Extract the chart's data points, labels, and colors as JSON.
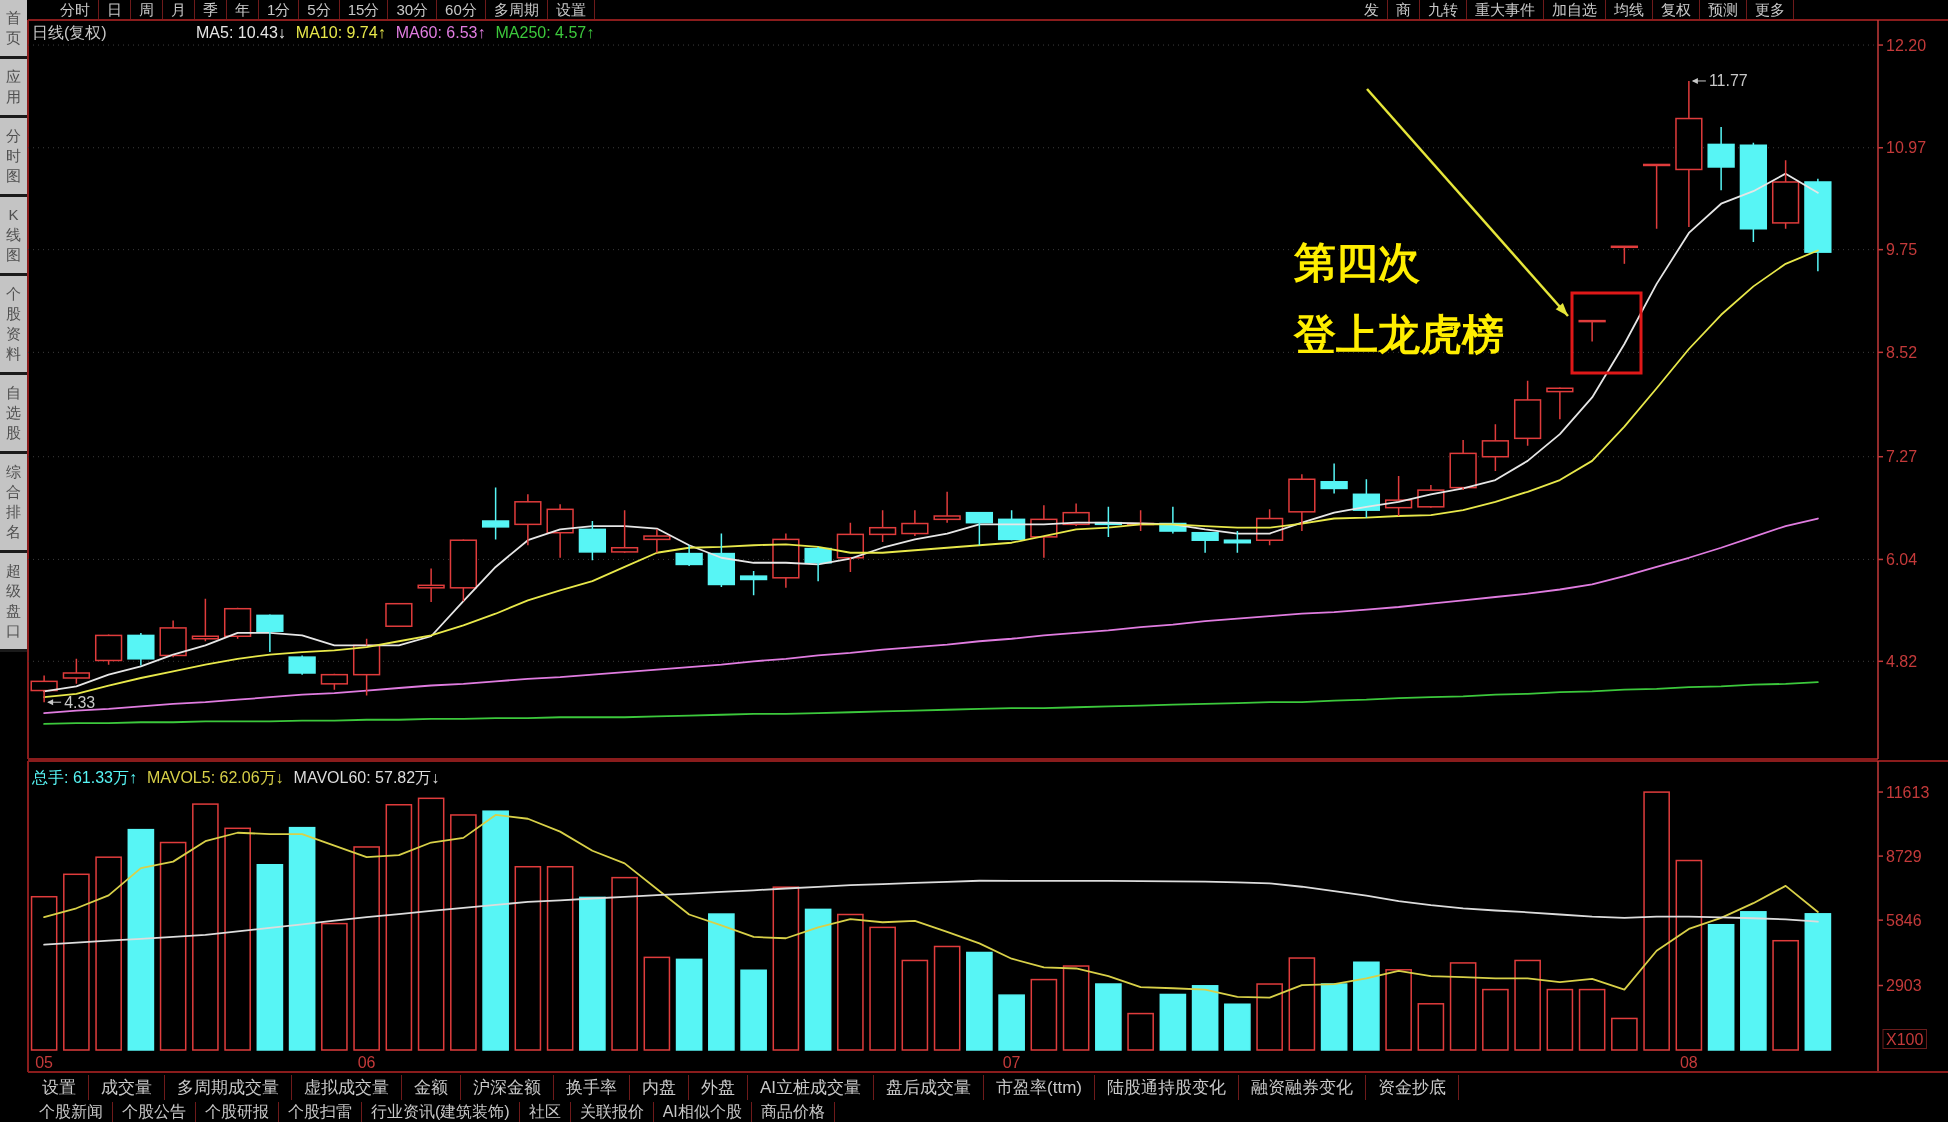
{
  "chart_data": [
    {
      "type": "candlestick",
      "title": "日线(复权)",
      "categories": [
        "05",
        null,
        null,
        null,
        null,
        null,
        null,
        null,
        null,
        null,
        "06",
        null,
        null,
        null,
        null,
        null,
        null,
        null,
        null,
        null,
        null,
        null,
        null,
        null,
        null,
        null,
        null,
        null,
        null,
        null,
        "07",
        null,
        null,
        null,
        null,
        null,
        null,
        null,
        null,
        null,
        null,
        null,
        null,
        null,
        null,
        null,
        null,
        null,
        null,
        null,
        null,
        "08",
        null,
        null,
        null,
        null
      ],
      "ohlc": [
        [
          4.47,
          4.65,
          4.33,
          4.58
        ],
        [
          4.62,
          4.85,
          4.55,
          4.68
        ],
        [
          4.83,
          5.14,
          4.78,
          5.13
        ],
        [
          5.13,
          5.16,
          4.77,
          4.85
        ],
        [
          4.89,
          5.31,
          4.87,
          5.22
        ],
        [
          5.09,
          5.57,
          5.06,
          5.12
        ],
        [
          5.12,
          5.46,
          5.09,
          5.45
        ],
        [
          5.37,
          5.38,
          4.93,
          5.18
        ],
        [
          4.87,
          4.89,
          4.66,
          4.68
        ],
        [
          4.55,
          4.67,
          4.48,
          4.66
        ],
        [
          4.66,
          5.09,
          4.41,
          5.01
        ],
        [
          5.24,
          5.51,
          5.24,
          5.51
        ],
        [
          5.7,
          5.93,
          5.53,
          5.73
        ],
        [
          5.7,
          6.28,
          5.54,
          6.27
        ],
        [
          6.5,
          6.9,
          6.28,
          6.43
        ],
        [
          6.46,
          6.82,
          6.21,
          6.73
        ],
        [
          6.36,
          6.7,
          6.06,
          6.64
        ],
        [
          6.4,
          6.5,
          6.03,
          6.13
        ],
        [
          6.13,
          6.63,
          6.12,
          6.18
        ],
        [
          6.28,
          6.4,
          6.12,
          6.32
        ],
        [
          6.11,
          6.21,
          5.96,
          5.98
        ],
        [
          6.11,
          6.35,
          5.71,
          5.74
        ],
        [
          5.84,
          5.9,
          5.61,
          5.8
        ],
        [
          5.82,
          6.35,
          5.7,
          6.28
        ],
        [
          6.17,
          6.19,
          5.78,
          6.0
        ],
        [
          6.06,
          6.48,
          5.89,
          6.34
        ],
        [
          6.34,
          6.63,
          6.25,
          6.42
        ],
        [
          6.35,
          6.63,
          6.32,
          6.47
        ],
        [
          6.52,
          6.85,
          6.48,
          6.56
        ],
        [
          6.6,
          6.6,
          6.21,
          6.48
        ],
        [
          6.52,
          6.63,
          6.27,
          6.28
        ],
        [
          6.31,
          6.69,
          6.06,
          6.52
        ],
        [
          6.46,
          6.71,
          6.44,
          6.6
        ],
        [
          6.48,
          6.67,
          6.31,
          6.46
        ],
        [
          6.46,
          6.63,
          6.38,
          6.47
        ],
        [
          6.47,
          6.67,
          6.35,
          6.38
        ],
        [
          6.36,
          6.36,
          6.12,
          6.27
        ],
        [
          6.27,
          6.38,
          6.12,
          6.24
        ],
        [
          6.27,
          6.64,
          6.21,
          6.53
        ],
        [
          6.61,
          7.06,
          6.38,
          7.0
        ],
        [
          6.97,
          7.19,
          6.83,
          6.89
        ],
        [
          6.82,
          7.0,
          6.54,
          6.63
        ],
        [
          6.66,
          7.04,
          6.56,
          6.75
        ],
        [
          6.67,
          6.93,
          6.66,
          6.87
        ],
        [
          6.9,
          7.47,
          6.87,
          7.31
        ],
        [
          7.27,
          7.66,
          7.1,
          7.46
        ],
        [
          7.49,
          8.18,
          7.4,
          7.95
        ],
        [
          8.05,
          8.1,
          7.72,
          8.09
        ],
        [
          8.89,
          8.9,
          8.65,
          8.9
        ],
        [
          9.78,
          9.79,
          9.58,
          9.79
        ],
        [
          10.76,
          10.77,
          10.0,
          10.77
        ],
        [
          10.71,
          11.77,
          10.02,
          11.32
        ],
        [
          11.01,
          11.22,
          10.46,
          10.74
        ],
        [
          11.0,
          11.03,
          9.84,
          10.0
        ],
        [
          10.07,
          10.82,
          10.0,
          10.56
        ],
        [
          10.56,
          10.6,
          9.49,
          9.72
        ]
      ],
      "colors": [
        "#e03c3c",
        "#e03c3c",
        "#e03c3c",
        "#57f5f5",
        "#e03c3c",
        "#e03c3c",
        "#e03c3c",
        "#57f5f5",
        "#57f5f5",
        "#e03c3c",
        "#e03c3c",
        "#e03c3c",
        "#e03c3c",
        "#e03c3c",
        "#57f5f5",
        "#e03c3c",
        "#e03c3c",
        "#57f5f5",
        "#e03c3c",
        "#e03c3c",
        "#57f5f5",
        "#57f5f5",
        "#57f5f5",
        "#e03c3c",
        "#57f5f5",
        "#e03c3c",
        "#e03c3c",
        "#e03c3c",
        "#e03c3c",
        "#57f5f5",
        "#57f5f5",
        "#e03c3c",
        "#e03c3c",
        "#57f5f5",
        "#e03c3c",
        "#57f5f5",
        "#57f5f5",
        "#57f5f5",
        "#e03c3c",
        "#e03c3c",
        "#57f5f5",
        "#57f5f5",
        "#e03c3c",
        "#e03c3c",
        "#e03c3c",
        "#e03c3c",
        "#e03c3c",
        "#e03c3c",
        "#e03c3c",
        "#e03c3c",
        "#e03c3c",
        "#e03c3c",
        "#57f5f5",
        "#57f5f5",
        "#e03c3c",
        "#57f5f5"
      ],
      "value_labels": [
        "4.33",
        null,
        null,
        null,
        null,
        null,
        null,
        null,
        null,
        null,
        null,
        null,
        null,
        null,
        null,
        null,
        null,
        null,
        null,
        null,
        null,
        null,
        null,
        null,
        null,
        null,
        null,
        null,
        null,
        null,
        null,
        null,
        null,
        null,
        null,
        null,
        null,
        null,
        null,
        null,
        null,
        null,
        null,
        null,
        null,
        null,
        null,
        null,
        null,
        null,
        null,
        "11.77",
        null,
        null,
        null,
        null
      ],
      "series": [
        {
          "name": "MA5: 10.43↓",
          "type": "line",
          "color": "#e6e6e6",
          "values": [
            4.46,
            4.52,
            4.66,
            4.76,
            4.9,
            5.01,
            5.16,
            5.16,
            5.13,
            5.01,
            5.01,
            5.01,
            5.12,
            5.54,
            5.95,
            6.27,
            6.4,
            6.44,
            6.44,
            6.41,
            6.21,
            6.06,
            6.0,
            6.0,
            5.98,
            6.05,
            6.18,
            6.28,
            6.35,
            6.46,
            6.46,
            6.46,
            6.48,
            6.48,
            6.47,
            6.46,
            6.4,
            6.35,
            6.35,
            6.48,
            6.6,
            6.67,
            6.73,
            6.82,
            6.89,
            6.99,
            7.22,
            7.54,
            7.98,
            8.62,
            9.34,
            9.95,
            10.3,
            10.45,
            10.66,
            10.43
          ]
        },
        {
          "name": "MA10: 9.74↑",
          "type": "line",
          "color": "#e8e84a",
          "values": [
            4.39,
            4.43,
            4.53,
            4.62,
            4.7,
            4.78,
            4.85,
            4.9,
            4.93,
            4.95,
            4.99,
            5.06,
            5.13,
            5.25,
            5.39,
            5.55,
            5.67,
            5.78,
            5.95,
            6.12,
            6.18,
            6.19,
            6.21,
            6.22,
            6.19,
            6.12,
            6.12,
            6.15,
            6.18,
            6.21,
            6.24,
            6.32,
            6.4,
            6.42,
            6.46,
            6.46,
            6.44,
            6.42,
            6.42,
            6.47,
            6.53,
            6.54,
            6.56,
            6.57,
            6.63,
            6.73,
            6.85,
            6.99,
            7.22,
            7.63,
            8.09,
            8.56,
            8.97,
            9.31,
            9.58,
            9.74
          ]
        },
        {
          "name": "MA60: 6.53↑",
          "type": "line",
          "color": "#e07ce0",
          "values": [
            4.2,
            4.23,
            4.25,
            4.28,
            4.31,
            4.33,
            4.36,
            4.39,
            4.42,
            4.44,
            4.47,
            4.5,
            4.53,
            4.55,
            4.58,
            4.61,
            4.63,
            4.66,
            4.69,
            4.72,
            4.75,
            4.78,
            4.82,
            4.85,
            4.89,
            4.92,
            4.96,
            4.99,
            5.02,
            5.06,
            5.09,
            5.13,
            5.16,
            5.19,
            5.23,
            5.26,
            5.3,
            5.33,
            5.36,
            5.39,
            5.41,
            5.44,
            5.47,
            5.51,
            5.55,
            5.59,
            5.63,
            5.68,
            5.74,
            5.84,
            5.95,
            6.06,
            6.18,
            6.31,
            6.44,
            6.53
          ]
        },
        {
          "name": "MA250: 4.57↑",
          "type": "line",
          "color": "#3cc83c",
          "values": [
            4.07,
            4.08,
            4.08,
            4.09,
            4.09,
            4.1,
            4.1,
            4.1,
            4.11,
            4.11,
            4.12,
            4.12,
            4.13,
            4.13,
            4.14,
            4.14,
            4.15,
            4.15,
            4.15,
            4.16,
            4.17,
            4.18,
            4.19,
            4.19,
            4.2,
            4.21,
            4.22,
            4.23,
            4.24,
            4.25,
            4.26,
            4.26,
            4.27,
            4.28,
            4.29,
            4.3,
            4.31,
            4.32,
            4.33,
            4.33,
            4.35,
            4.36,
            4.38,
            4.39,
            4.4,
            4.42,
            4.43,
            4.45,
            4.46,
            4.48,
            4.49,
            4.51,
            4.52,
            4.54,
            4.55,
            4.57
          ]
        }
      ],
      "ylim": [
        3.65,
        12.5
      ],
      "yticks": [
        {
          "value": 12.2,
          "label": "12.20"
        },
        10.97,
        9.75,
        8.52,
        7.27,
        6.04,
        4.82
      ],
      "grid": "y",
      "legend": "top left",
      "tick_labels": "y",
      "annotations": [
        "第四次",
        "登上龙虎榜"
      ]
    },
    {
      "type": "bar",
      "categories": [
        "05",
        null,
        null,
        null,
        null,
        null,
        null,
        null,
        null,
        null,
        "06",
        null,
        null,
        null,
        null,
        null,
        null,
        null,
        null,
        null,
        null,
        null,
        null,
        null,
        null,
        null,
        null,
        null,
        null,
        null,
        "07",
        null,
        null,
        null,
        null,
        null,
        null,
        null,
        null,
        null,
        null,
        null,
        null,
        null,
        null,
        null,
        null,
        null,
        null,
        null,
        null,
        "08",
        null,
        null,
        null,
        null
      ],
      "series": [
        {
          "name": "总手: 61.33万↑",
          "type": "bar",
          "color": "#57f5f5",
          "colors": [
            "#e03c3c",
            "#e03c3c",
            "#e03c3c",
            "#57f5f5",
            "#e03c3c",
            "#e03c3c",
            "#e03c3c",
            "#57f5f5",
            "#57f5f5",
            "#e03c3c",
            "#e03c3c",
            "#e03c3c",
            "#e03c3c",
            "#e03c3c",
            "#57f5f5",
            "#e03c3c",
            "#e03c3c",
            "#57f5f5",
            "#e03c3c",
            "#e03c3c",
            "#57f5f5",
            "#57f5f5",
            "#57f5f5",
            "#e03c3c",
            "#57f5f5",
            "#e03c3c",
            "#e03c3c",
            "#e03c3c",
            "#e03c3c",
            "#57f5f5",
            "#57f5f5",
            "#e03c3c",
            "#e03c3c",
            "#57f5f5",
            "#e03c3c",
            "#57f5f5",
            "#57f5f5",
            "#57f5f5",
            "#e03c3c",
            "#e03c3c",
            "#57f5f5",
            "#57f5f5",
            "#e03c3c",
            "#e03c3c",
            "#e03c3c",
            "#e03c3c",
            "#e03c3c",
            "#e03c3c",
            "#e03c3c",
            "#e03c3c",
            "#e03c3c",
            "#e03c3c",
            "#57f5f5",
            "#57f5f5",
            "#e03c3c",
            "#57f5f5"
          ],
          "values": [
            6900,
            7910,
            8680,
            9920,
            9340,
            11070,
            9980,
            8340,
            10010,
            5690,
            9140,
            11040,
            11330,
            10580,
            10750,
            8250,
            8250,
            6870,
            7760,
            4170,
            4080,
            6120,
            3590,
            7330,
            6330,
            6100,
            5520,
            4030,
            4660,
            4390,
            2470,
            3170,
            3780,
            2970,
            1640,
            2500,
            2890,
            2060,
            2970,
            4140,
            2970,
            3950,
            3610,
            2080,
            3920,
            2720,
            4030,
            2720,
            2720,
            1420,
            11610,
            8530,
            5640,
            6220,
            4920,
            6130
          ]
        },
        {
          "name": "MAVOL5: 62.06万↓",
          "type": "line",
          "color": "#d8d048",
          "values": [
            5980,
            6380,
            6960,
            8190,
            8480,
            9400,
            9780,
            9720,
            9720,
            9200,
            8680,
            8770,
            9340,
            9550,
            10580,
            10410,
            9830,
            8970,
            8400,
            7250,
            6100,
            5610,
            5090,
            5030,
            5520,
            5890,
            5750,
            5810,
            5320,
            4800,
            4110,
            3720,
            3670,
            3330,
            2830,
            2780,
            2720,
            2390,
            2360,
            2920,
            2970,
            3220,
            3560,
            3330,
            3280,
            3220,
            3220,
            3060,
            3200,
            2720,
            4470,
            5450,
            5950,
            6610,
            7390,
            6210
          ]
        },
        {
          "name": "MAVOL60: 57.82万↓",
          "type": "line",
          "color": "#dcdcdc",
          "values": [
            4740,
            4830,
            4920,
            5000,
            5090,
            5180,
            5340,
            5500,
            5660,
            5820,
            5980,
            6120,
            6260,
            6400,
            6530,
            6670,
            6740,
            6820,
            6890,
            6970,
            7040,
            7120,
            7190,
            7270,
            7340,
            7420,
            7470,
            7520,
            7570,
            7620,
            7610,
            7610,
            7610,
            7610,
            7600,
            7590,
            7580,
            7550,
            7500,
            7350,
            7150,
            6950,
            6700,
            6520,
            6380,
            6280,
            6200,
            6100,
            6000,
            5950,
            6000,
            6000,
            5970,
            5930,
            5880,
            5780
          ]
        }
      ],
      "ylim": [
        0,
        13010
      ],
      "yticks": [
        11613,
        8729,
        5846,
        2903
      ],
      "ylabel": "X100",
      "legend": "top left"
    },
    {
      "type": "other",
      "annotations": [
        "分时",
        "日",
        "周",
        "月",
        "季",
        "年",
        "1分",
        "5分",
        "15分",
        "30分",
        "60分",
        "多周期",
        "设置"
      ]
    },
    {
      "type": "other",
      "annotations": [
        "发",
        "商",
        "九转",
        "重大事件",
        "加自选",
        "均线",
        "复权",
        "预测",
        "更多"
      ]
    },
    {
      "type": "other",
      "annotations": [
        "首页",
        "应用",
        "分时图",
        "K线图",
        "个股资料",
        "自选股",
        "综合排名",
        "超级盘口"
      ]
    },
    {
      "type": "other",
      "annotations": [
        "设置",
        "成交量",
        "多周期成交量",
        "虚拟成交量",
        "金额",
        "沪深金额",
        "换手率",
        "内盘",
        "外盘",
        "AI立桩成交量",
        "盘后成交量",
        "市盈率(ttm)",
        "陆股通持股变化",
        "融资融券变化",
        "资金抄底"
      ]
    },
    {
      "type": "other",
      "annotations": [
        "个股新闻",
        "个股公告",
        "个股研报",
        "个股扫雷",
        "行业资讯(建筑装饰)",
        "社区",
        "关联报价",
        "AI相似个股",
        "商品价格"
      ]
    }
  ]
}
